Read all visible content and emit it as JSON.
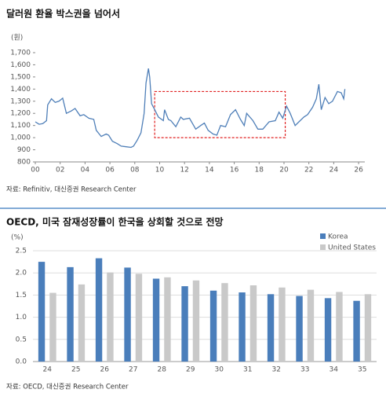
{
  "chart_data": [
    {
      "type": "line",
      "title": "달러원 환율 박스권을 넘어서",
      "y_unit": "(원)",
      "source": "자료: Refinitiv, 대신증권 Research Center",
      "x": [
        2000.0,
        2000.3,
        2000.6,
        2000.9,
        2001.0,
        2001.3,
        2001.6,
        2001.9,
        2002.2,
        2002.5,
        2002.9,
        2003.2,
        2003.6,
        2003.9,
        2004.3,
        2004.7,
        2004.9,
        2005.3,
        2005.7,
        2005.9,
        2006.2,
        2006.6,
        2006.9,
        2007.3,
        2007.7,
        2007.9,
        2008.2,
        2008.5,
        2008.75,
        2008.9,
        2009.1,
        2009.2,
        2009.35,
        2009.6,
        2009.9,
        2010.3,
        2010.4,
        2010.7,
        2010.9,
        2011.3,
        2011.7,
        2011.9,
        2012.4,
        2012.9,
        2013.3,
        2013.6,
        2013.9,
        2014.3,
        2014.6,
        2014.9,
        2015.3,
        2015.7,
        2016.1,
        2016.5,
        2016.8,
        2017.0,
        2017.5,
        2017.9,
        2018.3,
        2018.8,
        2019.3,
        2019.6,
        2019.9,
        2020.2,
        2020.5,
        2020.9,
        2021.2,
        2021.6,
        2021.9,
        2022.3,
        2022.6,
        2022.8,
        2023.0,
        2023.3,
        2023.6,
        2023.9,
        2024.3,
        2024.6,
        2024.8,
        2024.9
      ],
      "series": [
        {
          "color": "#4f7fb8",
          "values": [
            1130,
            1110,
            1115,
            1140,
            1270,
            1320,
            1290,
            1300,
            1325,
            1200,
            1220,
            1240,
            1180,
            1190,
            1160,
            1150,
            1060,
            1010,
            1030,
            1020,
            970,
            950,
            930,
            925,
            920,
            930,
            980,
            1040,
            1200,
            1450,
            1570,
            1500,
            1280,
            1230,
            1170,
            1140,
            1230,
            1150,
            1140,
            1090,
            1170,
            1150,
            1160,
            1070,
            1100,
            1120,
            1060,
            1030,
            1020,
            1100,
            1090,
            1190,
            1230,
            1150,
            1100,
            1200,
            1140,
            1070,
            1070,
            1130,
            1140,
            1210,
            1160,
            1260,
            1200,
            1100,
            1130,
            1170,
            1190,
            1250,
            1320,
            1440,
            1230,
            1330,
            1280,
            1300,
            1380,
            1370,
            1320,
            1400
          ]
        }
      ],
      "xlim": [
        2000,
        2026.5
      ],
      "xticks": [
        {
          "value": 2000,
          "label": "00"
        },
        {
          "value": 2002,
          "label": "02"
        },
        {
          "value": 2004,
          "label": "04"
        },
        {
          "value": 2006,
          "label": "06"
        },
        {
          "value": 2008,
          "label": "08"
        },
        {
          "value": 2010,
          "label": "10"
        },
        {
          "value": 2012,
          "label": "12"
        },
        {
          "value": 2014,
          "label": "14"
        },
        {
          "value": 2016,
          "label": "16"
        },
        {
          "value": 2018,
          "label": "18"
        },
        {
          "value": 2020,
          "label": "20"
        },
        {
          "value": 2022,
          "label": "22"
        },
        {
          "value": 2024,
          "label": "24"
        },
        {
          "value": 2026,
          "label": "26"
        }
      ],
      "ylim": [
        800,
        1700
      ],
      "yticks": [
        {
          "value": 800,
          "label": "800"
        },
        {
          "value": 900,
          "label": "900"
        },
        {
          "value": 1000,
          "label": "1,000"
        },
        {
          "value": 1100,
          "label": "1,100"
        },
        {
          "value": 1200,
          "label": "1,200"
        },
        {
          "value": 1300,
          "label": "1,300"
        },
        {
          "value": 1400,
          "label": "1,400"
        },
        {
          "value": 1500,
          "label": "1,500"
        },
        {
          "value": 1600,
          "label": "1,600"
        },
        {
          "value": 1700,
          "label": "1,700"
        }
      ],
      "highlight_box": {
        "x": [
          2009.6,
          2020.1
        ],
        "y": [
          1000,
          1380
        ],
        "color": "#e02020"
      }
    },
    {
      "type": "bar",
      "title": "OECD, 미국 잠재성장률이 한국을 상회할 것으로 전망",
      "y_unit": "(%)",
      "source": "자료: OECD, 대신증권 Research Center",
      "categories": [
        "24",
        "25",
        "26",
        "27",
        "28",
        "29",
        "30",
        "31",
        "32",
        "33",
        "34",
        "35"
      ],
      "series": [
        {
          "name": "Korea",
          "color": "#4a7ebb",
          "values": [
            2.25,
            2.13,
            2.33,
            2.12,
            1.87,
            1.7,
            1.6,
            1.56,
            1.52,
            1.48,
            1.43,
            1.37
          ]
        },
        {
          "name": "United States",
          "color": "#c9c9c9",
          "values": [
            1.55,
            1.74,
            2.01,
            1.98,
            1.9,
            1.83,
            1.77,
            1.72,
            1.67,
            1.62,
            1.57,
            1.52
          ]
        }
      ],
      "ylim": [
        0,
        2.5
      ],
      "yticks": [
        {
          "value": 0,
          "label": "0.0"
        },
        0.5,
        {
          "value": 1,
          "label": "1.0"
        },
        1.5,
        {
          "value": 2,
          "label": "2.0"
        },
        2.5
      ],
      "grid": true
    }
  ]
}
